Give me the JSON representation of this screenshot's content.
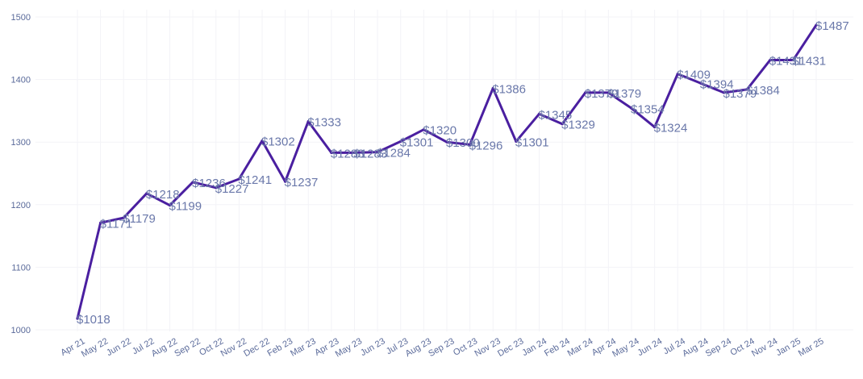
{
  "colors": {
    "line": "#4a1fa0",
    "grid": "#f3f3f7",
    "tick_text": "#5a6a9a",
    "label_text": "#6a78aa",
    "background": "#ffffff"
  },
  "chart_data": {
    "type": "line",
    "title": "",
    "xlabel": "",
    "ylabel": "",
    "ylim": [
      1000,
      1500
    ],
    "yticks": [
      "1000",
      "1100",
      "1200",
      "1300",
      "1400",
      "1500"
    ],
    "ytick_values": [
      1000,
      1100,
      1200,
      1300,
      1400,
      1500
    ],
    "grid": true,
    "legend": "none",
    "x": [
      "Apr 21",
      "May 22",
      "Jun 22",
      "Jul 22",
      "Aug 22",
      "Sep 22",
      "Oct 22",
      "Nov 22",
      "Dec 22",
      "Feb 23",
      "Mar 23",
      "Apr 23",
      "May 23",
      "Jun 23",
      "Jul 23",
      "Aug 23",
      "Sep 23",
      "Oct 23",
      "Nov 23",
      "Dec 23",
      "Jan 24",
      "Feb 24",
      "Mar 24",
      "Apr 24",
      "May 24",
      "Jun 24",
      "Jul 24",
      "Aug 24",
      "Sep 24",
      "Oct 24",
      "Nov 24",
      "Jan 25",
      "Mar 25"
    ],
    "series": [
      {
        "values": [
          1018,
          1171,
          1179,
          1218,
          1199,
          1236,
          1227,
          1241,
          1302,
          1237,
          1333,
          1283,
          1283,
          1284,
          1301,
          1320,
          1300,
          1296,
          1386,
          1301,
          1345,
          1329,
          1379,
          1379,
          1354,
          1324,
          1409,
          1394,
          1379,
          1384,
          1431,
          1431,
          1487
        ],
        "labels": [
          "$1018",
          "$1171",
          "$1179",
          "$1218",
          "$1199",
          "$1236",
          "$1227",
          "$1241",
          "$1302",
          "$1237",
          "$1333",
          "$1283",
          "$1283",
          "$1284",
          "$1301",
          "$1320",
          "$1300",
          "$1296",
          "$1386",
          "$1301",
          "$1345",
          "$1329",
          "$1379",
          "$1379",
          "$1354",
          "$1324",
          "$1409",
          "$1394",
          "$1379",
          "$1384",
          "$1431",
          "$1431",
          "$1487"
        ]
      }
    ]
  }
}
